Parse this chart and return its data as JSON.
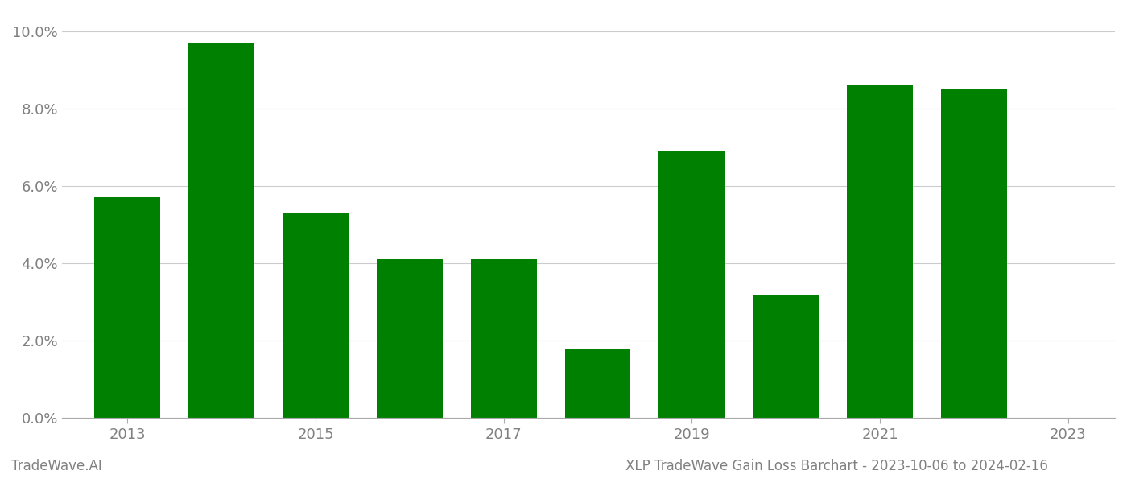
{
  "years": [
    2013,
    2014,
    2015,
    2016,
    2017,
    2018,
    2019,
    2020,
    2021,
    2022
  ],
  "values": [
    0.057,
    0.097,
    0.053,
    0.041,
    0.041,
    0.018,
    0.069,
    0.032,
    0.086,
    0.085
  ],
  "bar_color": "#008000",
  "title": "XLP TradeWave Gain Loss Barchart - 2023-10-06 to 2024-02-16",
  "watermark": "TradeWave.AI",
  "ylim": [
    0,
    0.105
  ],
  "yticks": [
    0.0,
    0.02,
    0.04,
    0.06,
    0.08,
    0.1
  ],
  "background_color": "#ffffff",
  "grid_color": "#cccccc",
  "text_color": "#808080",
  "tick_label_fontsize": 13,
  "title_fontsize": 12,
  "watermark_fontsize": 12,
  "xlabel_years": [
    2013,
    2015,
    2017,
    2019,
    2021,
    2023
  ]
}
